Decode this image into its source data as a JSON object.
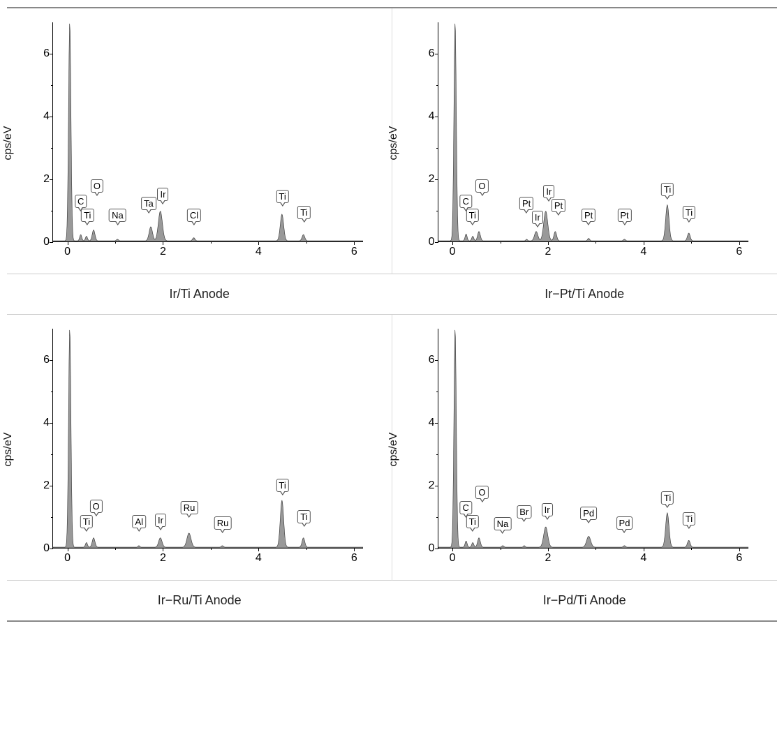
{
  "charts": [
    {
      "title": "Ir/Ti Anode",
      "ylabel": "cps/eV",
      "xlim": [
        -0.3,
        6.2
      ],
      "ylim": [
        0,
        7
      ],
      "xticks": [
        0,
        2,
        4,
        6
      ],
      "yticks": [
        0,
        2,
        4,
        6
      ],
      "xminor": [
        1,
        3,
        5
      ],
      "yminor": [
        1,
        3,
        5
      ],
      "fill_color": "#999999",
      "stroke_color": "#333333",
      "bg_color": "#ffffff",
      "peaks": [
        {
          "x": 0.05,
          "h": 7.0,
          "w": 0.07
        },
        {
          "x": 0.28,
          "h": 0.2,
          "w": 0.06
        },
        {
          "x": 0.4,
          "h": 0.15,
          "w": 0.06
        },
        {
          "x": 0.55,
          "h": 0.35,
          "w": 0.08
        },
        {
          "x": 1.05,
          "h": 0.05,
          "w": 0.06
        },
        {
          "x": 1.75,
          "h": 0.45,
          "w": 0.1
        },
        {
          "x": 1.95,
          "h": 0.95,
          "w": 0.12
        },
        {
          "x": 2.65,
          "h": 0.1,
          "w": 0.07
        },
        {
          "x": 4.5,
          "h": 0.85,
          "w": 0.1
        },
        {
          "x": 4.95,
          "h": 0.2,
          "w": 0.08
        }
      ],
      "labels": [
        {
          "x": 0.28,
          "text": "C",
          "yoff": 48
        },
        {
          "x": 0.42,
          "text": "Ti",
          "yoff": 28
        },
        {
          "x": 0.62,
          "text": "O",
          "yoff": 70
        },
        {
          "x": 1.05,
          "text": "Na",
          "yoff": 28
        },
        {
          "x": 1.7,
          "text": "Ta",
          "yoff": 45
        },
        {
          "x": 2.0,
          "text": "Ir",
          "yoff": 58
        },
        {
          "x": 2.65,
          "text": "Cl",
          "yoff": 28
        },
        {
          "x": 4.5,
          "text": "Ti",
          "yoff": 55
        },
        {
          "x": 4.95,
          "text": "Ti",
          "yoff": 32
        }
      ]
    },
    {
      "title": "Ir−Pt/Ti Anode",
      "ylabel": "cps/eV",
      "xlim": [
        -0.3,
        6.2
      ],
      "ylim": [
        0,
        7
      ],
      "xticks": [
        0,
        2,
        4,
        6
      ],
      "yticks": [
        0,
        2,
        4,
        6
      ],
      "xminor": [
        1,
        3,
        5
      ],
      "yminor": [
        1,
        3,
        5
      ],
      "fill_color": "#999999",
      "stroke_color": "#333333",
      "bg_color": "#ffffff",
      "peaks": [
        {
          "x": 0.05,
          "h": 7.0,
          "w": 0.07
        },
        {
          "x": 0.28,
          "h": 0.22,
          "w": 0.06
        },
        {
          "x": 0.42,
          "h": 0.15,
          "w": 0.06
        },
        {
          "x": 0.55,
          "h": 0.3,
          "w": 0.08
        },
        {
          "x": 1.55,
          "h": 0.05,
          "w": 0.05
        },
        {
          "x": 1.75,
          "h": 0.3,
          "w": 0.1
        },
        {
          "x": 1.95,
          "h": 0.95,
          "w": 0.12
        },
        {
          "x": 2.15,
          "h": 0.3,
          "w": 0.08
        },
        {
          "x": 2.85,
          "h": 0.08,
          "w": 0.06
        },
        {
          "x": 3.6,
          "h": 0.05,
          "w": 0.06
        },
        {
          "x": 4.5,
          "h": 1.15,
          "w": 0.1
        },
        {
          "x": 4.95,
          "h": 0.25,
          "w": 0.08
        }
      ],
      "labels": [
        {
          "x": 0.28,
          "text": "C",
          "yoff": 48
        },
        {
          "x": 0.42,
          "text": "Ti",
          "yoff": 28
        },
        {
          "x": 0.62,
          "text": "O",
          "yoff": 70
        },
        {
          "x": 1.55,
          "text": "Pt",
          "yoff": 45
        },
        {
          "x": 1.78,
          "text": "Ir",
          "yoff": 25
        },
        {
          "x": 2.02,
          "text": "Ir",
          "yoff": 62
        },
        {
          "x": 2.22,
          "text": "Pt",
          "yoff": 42
        },
        {
          "x": 2.85,
          "text": "Pt",
          "yoff": 28
        },
        {
          "x": 3.6,
          "text": "Pt",
          "yoff": 28
        },
        {
          "x": 4.5,
          "text": "Ti",
          "yoff": 65
        },
        {
          "x": 4.95,
          "text": "Ti",
          "yoff": 32
        }
      ]
    },
    {
      "title": "Ir−Ru/Ti Anode",
      "ylabel": "cps/eV",
      "xlim": [
        -0.3,
        6.2
      ],
      "ylim": [
        0,
        7
      ],
      "xticks": [
        0,
        2,
        4,
        6
      ],
      "yticks": [
        0,
        2,
        4,
        6
      ],
      "xminor": [
        1,
        3,
        5
      ],
      "yminor": [
        1,
        3,
        5
      ],
      "fill_color": "#999999",
      "stroke_color": "#333333",
      "bg_color": "#ffffff",
      "peaks": [
        {
          "x": 0.05,
          "h": 7.0,
          "w": 0.07
        },
        {
          "x": 0.4,
          "h": 0.15,
          "w": 0.06
        },
        {
          "x": 0.55,
          "h": 0.3,
          "w": 0.08
        },
        {
          "x": 1.5,
          "h": 0.05,
          "w": 0.05
        },
        {
          "x": 1.95,
          "h": 0.3,
          "w": 0.1
        },
        {
          "x": 2.55,
          "h": 0.45,
          "w": 0.12
        },
        {
          "x": 3.25,
          "h": 0.05,
          "w": 0.06
        },
        {
          "x": 4.5,
          "h": 1.5,
          "w": 0.1
        },
        {
          "x": 4.95,
          "h": 0.3,
          "w": 0.08
        }
      ],
      "labels": [
        {
          "x": 0.4,
          "text": "Ti",
          "yoff": 28
        },
        {
          "x": 0.6,
          "text": "O",
          "yoff": 50
        },
        {
          "x": 1.5,
          "text": "Al",
          "yoff": 28
        },
        {
          "x": 1.95,
          "text": "Ir",
          "yoff": 30
        },
        {
          "x": 2.55,
          "text": "Ru",
          "yoff": 48
        },
        {
          "x": 3.25,
          "text": "Ru",
          "yoff": 26
        },
        {
          "x": 4.5,
          "text": "Ti",
          "yoff": 80
        },
        {
          "x": 4.95,
          "text": "Ti",
          "yoff": 35
        }
      ]
    },
    {
      "title": "Ir−Pd/Ti Anode",
      "ylabel": "cps/eV",
      "xlim": [
        -0.3,
        6.2
      ],
      "ylim": [
        0,
        7
      ],
      "xticks": [
        0,
        2,
        4,
        6
      ],
      "yticks": [
        0,
        2,
        4,
        6
      ],
      "xminor": [
        1,
        3,
        5
      ],
      "yminor": [
        1,
        3,
        5
      ],
      "fill_color": "#999999",
      "stroke_color": "#333333",
      "bg_color": "#ffffff",
      "peaks": [
        {
          "x": 0.05,
          "h": 7.0,
          "w": 0.07
        },
        {
          "x": 0.28,
          "h": 0.2,
          "w": 0.06
        },
        {
          "x": 0.42,
          "h": 0.15,
          "w": 0.06
        },
        {
          "x": 0.55,
          "h": 0.3,
          "w": 0.08
        },
        {
          "x": 1.05,
          "h": 0.05,
          "w": 0.06
        },
        {
          "x": 1.5,
          "h": 0.05,
          "w": 0.05
        },
        {
          "x": 1.95,
          "h": 0.65,
          "w": 0.12
        },
        {
          "x": 2.85,
          "h": 0.35,
          "w": 0.12
        },
        {
          "x": 3.6,
          "h": 0.05,
          "w": 0.06
        },
        {
          "x": 4.5,
          "h": 1.1,
          "w": 0.1
        },
        {
          "x": 4.95,
          "h": 0.22,
          "w": 0.08
        }
      ],
      "labels": [
        {
          "x": 0.28,
          "text": "C",
          "yoff": 48
        },
        {
          "x": 0.42,
          "text": "Ti",
          "yoff": 28
        },
        {
          "x": 0.62,
          "text": "O",
          "yoff": 70
        },
        {
          "x": 1.05,
          "text": "Na",
          "yoff": 25
        },
        {
          "x": 1.5,
          "text": "Br",
          "yoff": 42
        },
        {
          "x": 1.98,
          "text": "Ir",
          "yoff": 45
        },
        {
          "x": 2.85,
          "text": "Pd",
          "yoff": 40
        },
        {
          "x": 3.6,
          "text": "Pd",
          "yoff": 26
        },
        {
          "x": 4.5,
          "text": "Ti",
          "yoff": 62
        },
        {
          "x": 4.95,
          "text": "Ti",
          "yoff": 32
        }
      ]
    }
  ]
}
